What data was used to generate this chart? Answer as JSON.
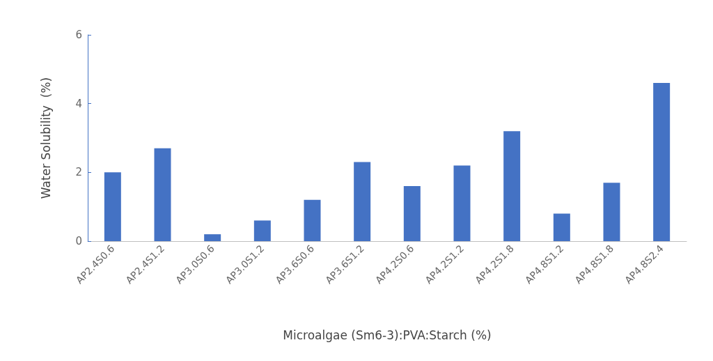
{
  "chart_data": {
    "type": "bar",
    "xlabel": "Microalgae (Sm6-3):PVA:Starch (%)",
    "ylabel": "Water Solubility  (%)",
    "categories": [
      "AP2.4S0.6",
      "AP2.4S1.2",
      "AP3.0S0.6",
      "AP3.0S1.2",
      "AP3.6S0.6",
      "AP3.6S1.2",
      "AP4.2S0.6",
      "AP4.2S1.2",
      "AP4.2S1.8",
      "AP4.8S1.2",
      "AP4.8S1.8",
      "AP4.8S2.4"
    ],
    "values": [
      2.0,
      2.7,
      0.2,
      0.6,
      1.2,
      2.3,
      1.6,
      2.2,
      3.2,
      0.8,
      1.7,
      4.6
    ],
    "color": "#4472c4",
    "ylim": [
      0,
      6
    ],
    "yticks": [
      0,
      2,
      4,
      6
    ],
    "grid": false
  }
}
